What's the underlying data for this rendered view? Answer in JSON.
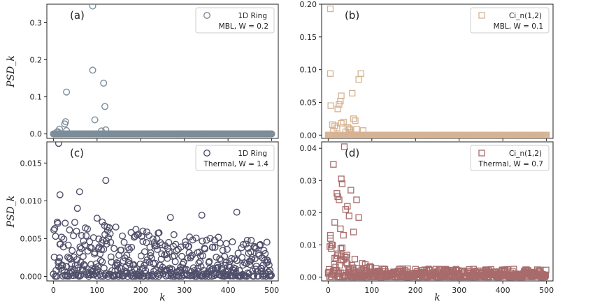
{
  "chart_data": [
    {
      "type": "scatter",
      "panel_label": "(a)",
      "legend": {
        "series": "1D Ring",
        "condition": "MBL, W = 0.2",
        "placement": "top-right"
      },
      "marker": "circle",
      "color": "#7c8c99",
      "xlim": [
        -15,
        515
      ],
      "ylim": [
        -0.012,
        0.35
      ],
      "yticks": [
        0.0,
        0.1,
        0.2,
        0.3
      ],
      "ytick_labels": [
        "0.0",
        "0.1",
        "0.2",
        "0.3"
      ],
      "xticks": [
        0,
        100,
        200,
        300,
        400,
        500
      ],
      "xtick_labels": [],
      "ylabel": "PSD_k",
      "xlabel": "",
      "outliers": {
        "x": [
          90,
          90,
          30,
          95,
          115,
          118,
          120,
          28,
          26,
          30,
          10,
          14,
          8,
          110
        ],
        "y": [
          0.345,
          0.172,
          0.113,
          0.038,
          0.137,
          0.074,
          0.011,
          0.033,
          0.027,
          0.009,
          0.006,
          0.013,
          0.005,
          0.008
        ]
      },
      "baseline": {
        "from": 0,
        "to": 500,
        "value": 0.0
      }
    },
    {
      "type": "scatter",
      "panel_label": "(b)",
      "legend": {
        "series": "Ci_n(1,2)",
        "condition": "MBL, W = 0.1",
        "placement": "top-right"
      },
      "marker": "square",
      "color": "#d6b393",
      "xlim": [
        -15,
        515
      ],
      "ylim": [
        -0.005,
        0.2
      ],
      "yticks": [
        0.0,
        0.05,
        0.1,
        0.15,
        0.2
      ],
      "ytick_labels": [
        "0.00",
        "0.05",
        "0.10",
        "0.15",
        "0.20"
      ],
      "xticks": [
        0,
        100,
        200,
        300,
        400,
        500
      ],
      "xtick_labels": [],
      "ylabel": "",
      "xlabel": "",
      "outliers": {
        "x": [
          5,
          5,
          75,
          70,
          30,
          28,
          25,
          22,
          6,
          55,
          58,
          62,
          35,
          30,
          10,
          45,
          48,
          50,
          15,
          20,
          65,
          80,
          12,
          40,
          52
        ],
        "y": [
          0.193,
          0.094,
          0.094,
          0.085,
          0.06,
          0.052,
          0.047,
          0.04,
          0.045,
          0.064,
          0.025,
          0.022,
          0.02,
          0.018,
          0.016,
          0.012,
          0.01,
          0.008,
          0.014,
          0.011,
          0.009,
          0.007,
          0.006,
          0.005,
          0.004
        ]
      },
      "baseline": {
        "from": 0,
        "to": 500,
        "value": 0.0
      }
    },
    {
      "type": "scatter",
      "panel_label": "(c)",
      "legend": {
        "series": "1D Ring",
        "condition": "Thermal, W = 1.4",
        "placement": "top-right"
      },
      "marker": "circle",
      "color": "#4f4f6b",
      "xlim": [
        -15,
        515
      ],
      "ylim": [
        -0.0006,
        0.0178
      ],
      "yticks": [
        0.0,
        0.005,
        0.01,
        0.015
      ],
      "ytick_labels": [
        "0.000",
        "0.005",
        "0.010",
        "0.015"
      ],
      "xticks": [
        0,
        100,
        200,
        300,
        400,
        500
      ],
      "xtick_labels": [
        "0",
        "100",
        "200",
        "300",
        "400",
        "500"
      ],
      "ylabel": "PSD_k",
      "xlabel": "k",
      "highlights": {
        "x": [
          12,
          120,
          60,
          15,
          55,
          100,
          112,
          420,
          340,
          268,
          205
        ],
        "y": [
          0.0176,
          0.0127,
          0.0112,
          0.0108,
          0.009,
          0.0077,
          0.0072,
          0.0085,
          0.0081,
          0.0078,
          0.006
        ]
      },
      "cloud": {
        "n": 500,
        "envelope_start": 0.0075,
        "envelope_end": 0.0045,
        "seed": 7
      }
    },
    {
      "type": "scatter",
      "panel_label": "(d)",
      "legend": {
        "series": "Ci_n(1,2)",
        "condition": "Thermal, W = 0.7",
        "placement": "top-right"
      },
      "marker": "square",
      "color": "#a86b6b",
      "xlim": [
        -15,
        515
      ],
      "ylim": [
        -0.0012,
        0.042
      ],
      "yticks": [
        0.0,
        0.01,
        0.02,
        0.03,
        0.04
      ],
      "ytick_labels": [
        "0.00",
        "0.01",
        "0.02",
        "0.03",
        "0.04"
      ],
      "xticks": [
        0,
        100,
        200,
        300,
        400,
        500
      ],
      "xtick_labels": [
        "0",
        "100",
        "200",
        "300",
        "400",
        "500"
      ],
      "ylabel": "",
      "xlabel": "k",
      "highlights": {
        "x": [
          37,
          12,
          30,
          32,
          20,
          22,
          25,
          52,
          65,
          44,
          40,
          70,
          5,
          15,
          48,
          58,
          8,
          28,
          35
        ],
        "y": [
          0.0405,
          0.035,
          0.0305,
          0.029,
          0.026,
          0.025,
          0.024,
          0.027,
          0.024,
          0.022,
          0.021,
          0.0185,
          0.012,
          0.017,
          0.019,
          0.014,
          0.01,
          0.015,
          0.013
        ]
      },
      "cloud": {
        "n": 500,
        "decay_peak": 0.018,
        "decay_scale": 35,
        "floor": 0.0025,
        "seed": 11
      }
    }
  ]
}
